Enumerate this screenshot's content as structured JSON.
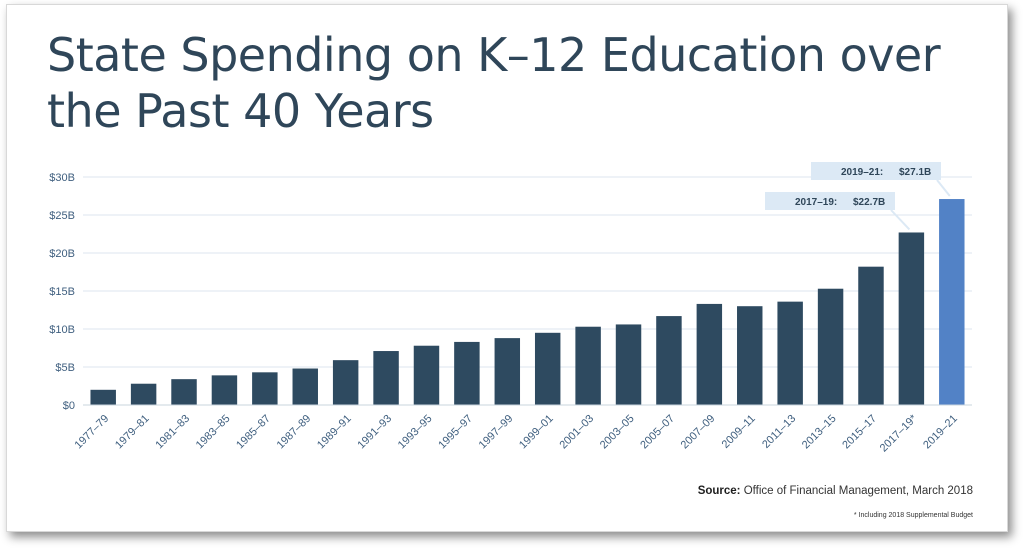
{
  "title": "State Spending on K–12 Education over the Past 40 Years",
  "source_label": "Source:",
  "source_text": "Office of Financial Management, March 2018",
  "footnote": "* Including 2018 Supplemental Budget",
  "colors": {
    "bar": "#2e4a60",
    "highlight": "#5282c6",
    "callout_bg": "#dce9f5",
    "axis_text": "#3f5f7f",
    "grid": "#dde6ef"
  },
  "chart_data": {
    "type": "bar",
    "title": "State Spending on K–12 Education over the Past 40 Years",
    "xlabel": "",
    "ylabel": "",
    "ylim": [
      0,
      30
    ],
    "yticks": [
      "$0",
      "$5B",
      "$10B",
      "$15B",
      "$20B",
      "$25B",
      "$30B"
    ],
    "categories": [
      "1977–79",
      "1979–81",
      "1981–83",
      "1983–85",
      "1985–87",
      "1987–89",
      "1989–91",
      "1991–93",
      "1993–95",
      "1995–97",
      "1997–99",
      "1999–01",
      "2001–03",
      "2003–05",
      "2005–07",
      "2007–09",
      "2009–11",
      "2011–13",
      "2013–15",
      "2015–17",
      "2017–19*",
      "2019–21"
    ],
    "values": [
      2.0,
      2.8,
      3.4,
      3.9,
      4.3,
      4.8,
      5.9,
      7.1,
      7.8,
      8.3,
      8.8,
      9.5,
      10.3,
      10.6,
      11.7,
      13.3,
      13.0,
      13.6,
      15.3,
      18.2,
      22.7,
      27.1
    ],
    "grid": true,
    "annotations": [
      {
        "category": "2017–19*",
        "label": "2017–19:",
        "value_label": "$22.7B"
      },
      {
        "category": "2019–21",
        "label": "2019–21:",
        "value_label": "$27.1B"
      }
    ],
    "highlight_category": "2019–21"
  }
}
